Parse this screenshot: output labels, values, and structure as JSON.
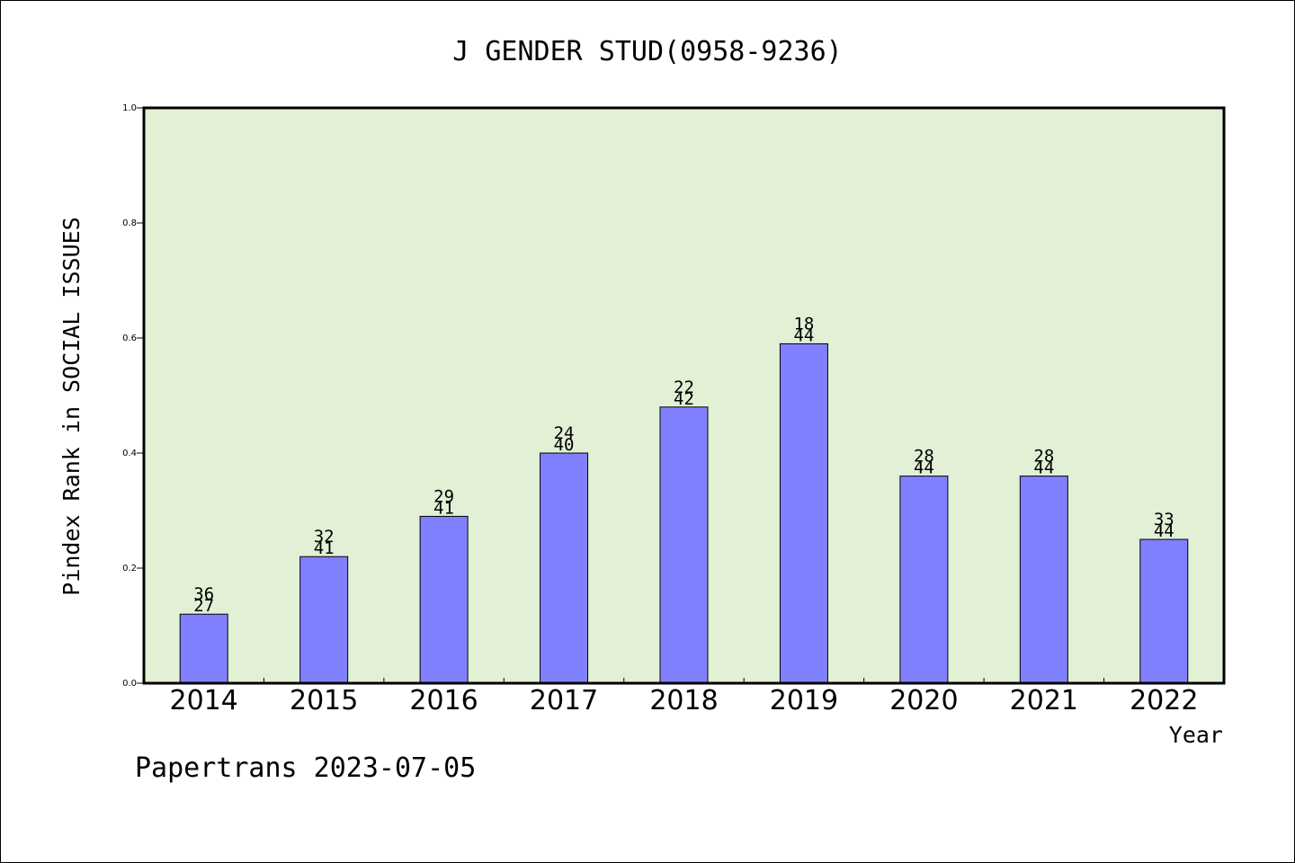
{
  "chart_data": {
    "type": "bar",
    "title": "J GENDER STUD(0958-9236)",
    "xlabel": "Year",
    "ylabel": "Pindex Rank in SOCIAL ISSUES",
    "footer": "Papertrans 2023-07-05",
    "ylim": [
      0,
      1.0
    ],
    "yticks": [
      "0.0",
      "0.2",
      "0.4",
      "0.6",
      "0.8",
      "1.0"
    ],
    "grid": false,
    "colors": {
      "bar": "#8080ff",
      "plot_bg": "#e2f0d6",
      "bar_edge": "#000000"
    },
    "categories": [
      "2014",
      "2015",
      "2016",
      "2017",
      "2018",
      "2019",
      "2020",
      "2021",
      "2022"
    ],
    "values": [
      0.12,
      0.22,
      0.29,
      0.4,
      0.48,
      0.59,
      0.36,
      0.36,
      0.25
    ],
    "labels_top": [
      "36",
      "32",
      "29",
      "24",
      "22",
      "18",
      "28",
      "28",
      "33"
    ],
    "labels_bottom": [
      "27",
      "41",
      "41",
      "40",
      "42",
      "44",
      "44",
      "44",
      "44"
    ]
  }
}
